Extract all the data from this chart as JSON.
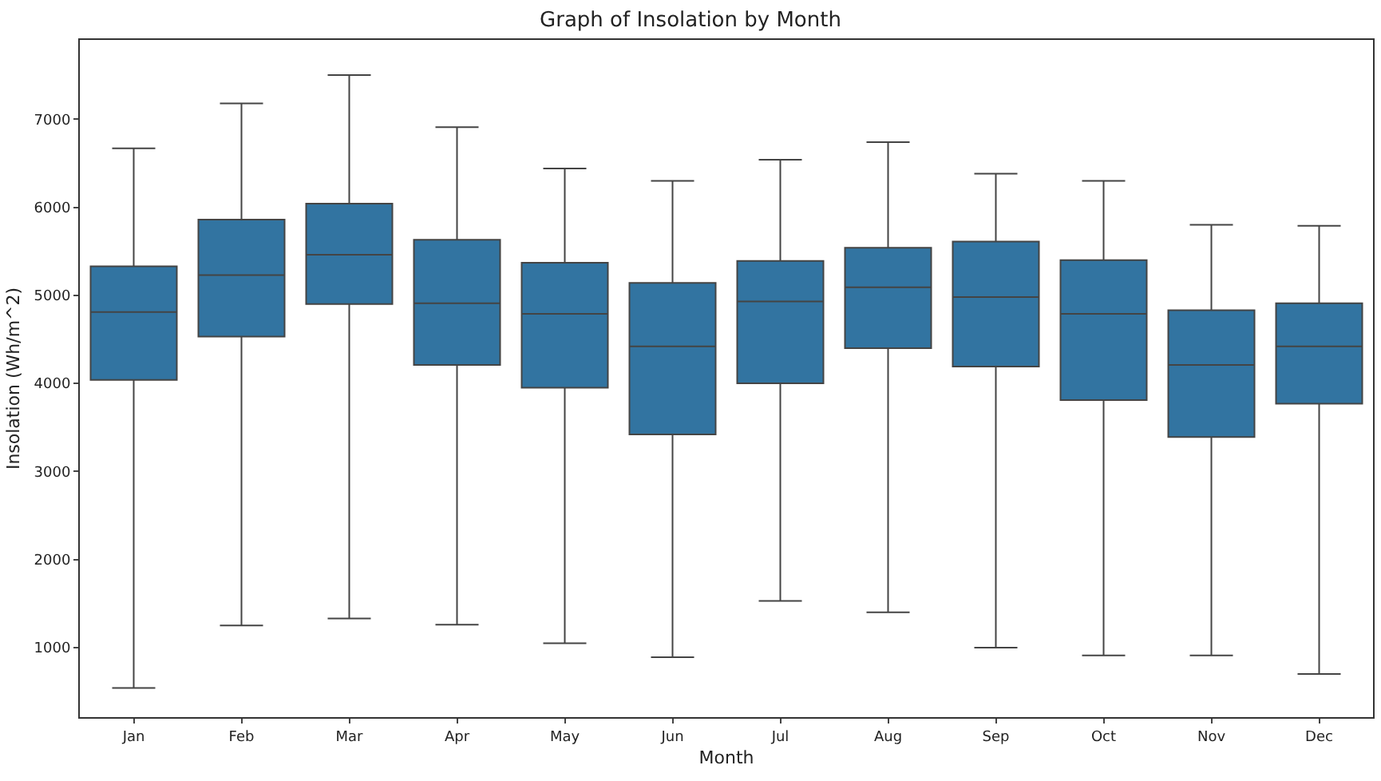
{
  "chart_data": {
    "type": "box",
    "title": "Graph of Insolation by Month",
    "xlabel": "Month",
    "ylabel": "Insolation (Wh/m^2)",
    "categories": [
      "Jan",
      "Feb",
      "Mar",
      "Apr",
      "May",
      "Jun",
      "Jul",
      "Aug",
      "Sep",
      "Oct",
      "Nov",
      "Dec"
    ],
    "boxes": [
      {
        "low": 540,
        "q1": 4040,
        "median": 4810,
        "q3": 5330,
        "high": 6670
      },
      {
        "low": 1250,
        "q1": 4530,
        "median": 5230,
        "q3": 5860,
        "high": 7180
      },
      {
        "low": 1330,
        "q1": 4900,
        "median": 5460,
        "q3": 6040,
        "high": 7500
      },
      {
        "low": 1260,
        "q1": 4210,
        "median": 4910,
        "q3": 5630,
        "high": 6910
      },
      {
        "low": 1050,
        "q1": 3950,
        "median": 4790,
        "q3": 5370,
        "high": 6440
      },
      {
        "low": 890,
        "q1": 3420,
        "median": 4420,
        "q3": 5140,
        "high": 6300
      },
      {
        "low": 1530,
        "q1": 4000,
        "median": 4930,
        "q3": 5390,
        "high": 6540
      },
      {
        "low": 1400,
        "q1": 4400,
        "median": 5090,
        "q3": 5540,
        "high": 6740
      },
      {
        "low": 1000,
        "q1": 4190,
        "median": 4980,
        "q3": 5610,
        "high": 6380
      },
      {
        "low": 910,
        "q1": 3810,
        "median": 4790,
        "q3": 5400,
        "high": 6300
      },
      {
        "low": 910,
        "q1": 3390,
        "median": 4210,
        "q3": 4830,
        "high": 5800
      },
      {
        "low": 700,
        "q1": 3770,
        "median": 4420,
        "q3": 4910,
        "high": 5790
      }
    ],
    "color": "#3274a1",
    "ylim": [
      210,
      7900
    ],
    "yticks": [
      1000,
      2000,
      3000,
      4000,
      5000,
      6000,
      7000
    ],
    "grid": false,
    "legend": false
  }
}
